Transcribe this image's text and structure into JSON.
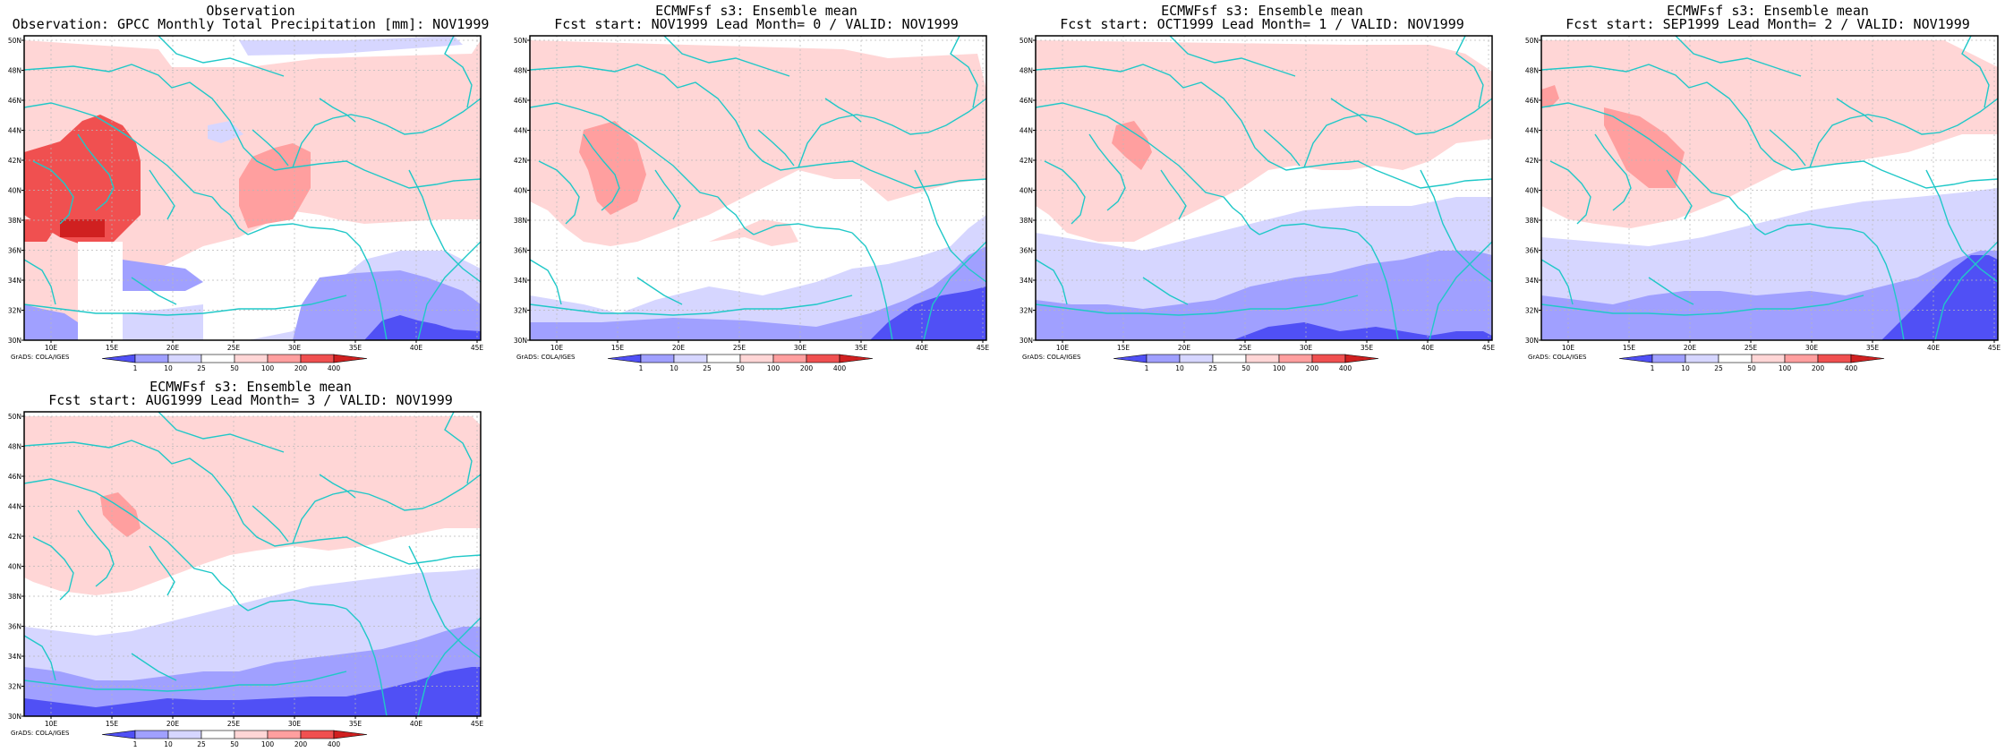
{
  "colors": {
    "levels": [
      "#5050f5",
      "#a0a0ff",
      "#d6d6ff",
      "#ffffff",
      "#ffd6d6",
      "#ff9f9f",
      "#f05050",
      "#d02020"
    ],
    "coast": "#20c8c8",
    "grid": "#b8b8b8",
    "frame": "#000000"
  },
  "legend": {
    "labels": [
      "1",
      "10",
      "25",
      "50",
      "100",
      "200",
      "400"
    ]
  },
  "axes": {
    "x_ticks": [
      "10E",
      "15E",
      "20E",
      "25E",
      "30E",
      "35E",
      "40E",
      "45E"
    ],
    "y_ticks": [
      "30N",
      "32N",
      "34N",
      "36N",
      "38N",
      "40N",
      "42N",
      "44N",
      "46N",
      "48N",
      "50N"
    ]
  },
  "credit": "GrADS: COLA/IGES",
  "chart_data": [
    {
      "type": "heatmap",
      "panel": "observation",
      "title": "Observation",
      "subtitle": "Observation: GPCC Monthly Total Precipitation [mm]: NOV1999",
      "xlim": [
        8,
        46
      ],
      "ylim": [
        30,
        51
      ]
    },
    {
      "type": "heatmap",
      "panel": "lead0",
      "title": "ECMWFsf s3: Ensemble mean",
      "subtitle": "Fcst start: NOV1999  Lead Month= 0 / VALID: NOV1999",
      "xlim": [
        8,
        46
      ],
      "ylim": [
        30,
        51
      ]
    },
    {
      "type": "heatmap",
      "panel": "lead1",
      "title": "ECMWFsf s3: Ensemble mean",
      "subtitle": "Fcst start: OCT1999  Lead Month= 1 / VALID: NOV1999",
      "xlim": [
        8,
        46
      ],
      "ylim": [
        30,
        51
      ]
    },
    {
      "type": "heatmap",
      "panel": "lead2",
      "title": "ECMWFsf s3: Ensemble mean",
      "subtitle": "Fcst start: SEP1999  Lead Month= 2 / VALID: NOV1999",
      "xlim": [
        8,
        46
      ],
      "ylim": [
        30,
        51
      ]
    },
    {
      "type": "heatmap",
      "panel": "lead3",
      "title": "ECMWFsf s3: Ensemble mean",
      "subtitle": "Fcst start: AUG1999  Lead Month= 3 / VALID: NOV1999",
      "xlim": [
        8,
        46
      ],
      "ylim": [
        30,
        51
      ]
    }
  ]
}
